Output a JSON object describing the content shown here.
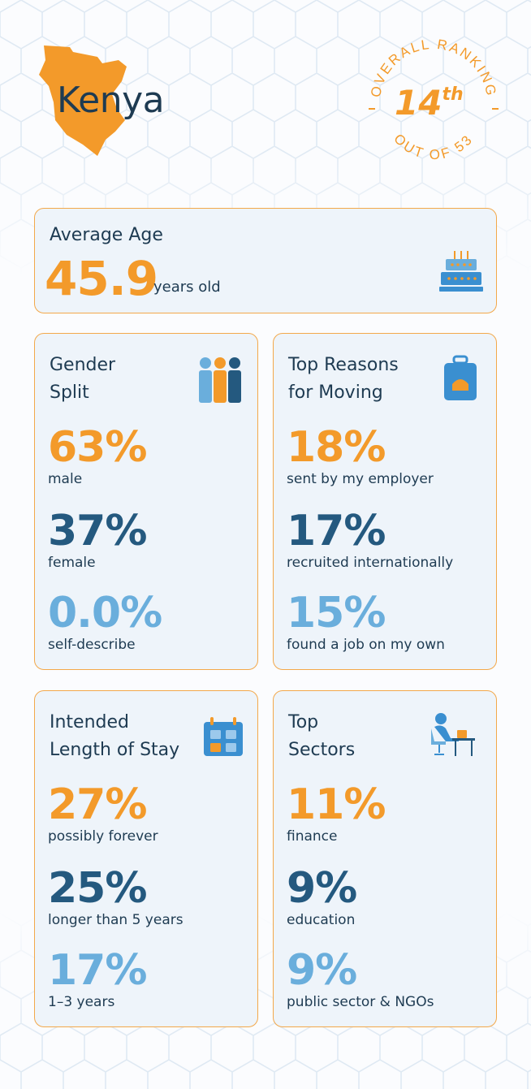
{
  "country": {
    "name": "Kenya"
  },
  "ranking": {
    "label_top": "OVERALL RANKING",
    "label_bottom": "OUT OF 53",
    "value": "14",
    "suffix": "th"
  },
  "average_age": {
    "title": "Average Age",
    "value": "45.9",
    "unit": "years old",
    "icon": "birthday-cake-icon"
  },
  "gender_split": {
    "title_line1": "Gender",
    "title_line2": "Split",
    "icon": "people-group-icon",
    "stats": [
      {
        "value": "63%",
        "label": "male"
      },
      {
        "value": "37%",
        "label": "female"
      },
      {
        "value": "0.0%",
        "label": "self-describe"
      }
    ]
  },
  "reasons_moving": {
    "title_line1": "Top Reasons",
    "title_line2": "for Moving",
    "icon": "suitcase-icon",
    "stats": [
      {
        "value": "18%",
        "label": "sent by my employer"
      },
      {
        "value": "17%",
        "label": "recruited internationally"
      },
      {
        "value": "15%",
        "label": "found a job on my own"
      }
    ]
  },
  "length_of_stay": {
    "title_line1": "Intended",
    "title_line2": "Length of Stay",
    "icon": "calendar-icon",
    "stats": [
      {
        "value": "27%",
        "label": "possibly forever"
      },
      {
        "value": "25%",
        "label": "longer than 5 years"
      },
      {
        "value": "17%",
        "label": "1–3 years"
      }
    ]
  },
  "top_sectors": {
    "title_line1": "Top",
    "title_line2": "Sectors",
    "icon": "person-at-desk-icon",
    "stats": [
      {
        "value": "11%",
        "label": "finance"
      },
      {
        "value": "9%",
        "label": "education"
      },
      {
        "value": "9%",
        "label": "public sector & NGOs"
      }
    ]
  },
  "colors": {
    "orange": "#f39a2a",
    "navy": "#24597f",
    "light_blue": "#6aaedc",
    "text": "#1e3b52",
    "card_bg": "#eef4fa"
  }
}
